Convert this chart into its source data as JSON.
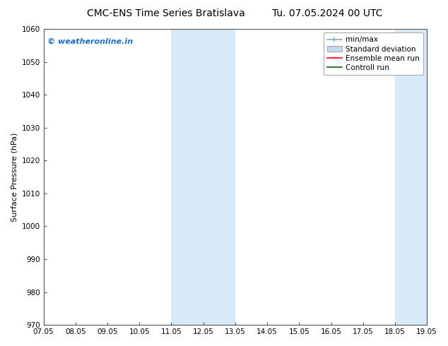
{
  "title_left": "CMC-ENS Time Series Bratislava",
  "title_right": "Tu. 07.05.2024 00 UTC",
  "ylabel": "Surface Pressure (hPa)",
  "ylim": [
    970,
    1060
  ],
  "yticks": [
    970,
    980,
    990,
    1000,
    1010,
    1020,
    1030,
    1040,
    1050,
    1060
  ],
  "xlim": [
    0,
    12
  ],
  "xtick_labels": [
    "07.05",
    "08.05",
    "09.05",
    "10.05",
    "11.05",
    "12.05",
    "13.05",
    "14.05",
    "15.05",
    "16.05",
    "17.05",
    "18.05",
    "19.05"
  ],
  "xtick_positions": [
    0,
    1,
    2,
    3,
    4,
    5,
    6,
    7,
    8,
    9,
    10,
    11,
    12
  ],
  "shaded_bands": [
    {
      "x_start": 4,
      "x_end": 6
    },
    {
      "x_start": 11,
      "x_end": 12
    }
  ],
  "band_color": "#d8eaf8",
  "watermark_text": "© weatheronline.in",
  "watermark_color": "#1a6fbf",
  "legend_labels": [
    "min/max",
    "Standard deviation",
    "Ensemble mean run",
    "Controll run"
  ],
  "legend_colors_line": [
    "#a0b8c8",
    "#b8c8d8",
    "red",
    "green"
  ],
  "bg_color": "#ffffff",
  "plot_bg_color": "#ffffff",
  "font_size_title": 10,
  "font_size_ticks": 7.5,
  "font_size_ylabel": 8,
  "font_size_legend": 7.5,
  "font_size_watermark": 8
}
